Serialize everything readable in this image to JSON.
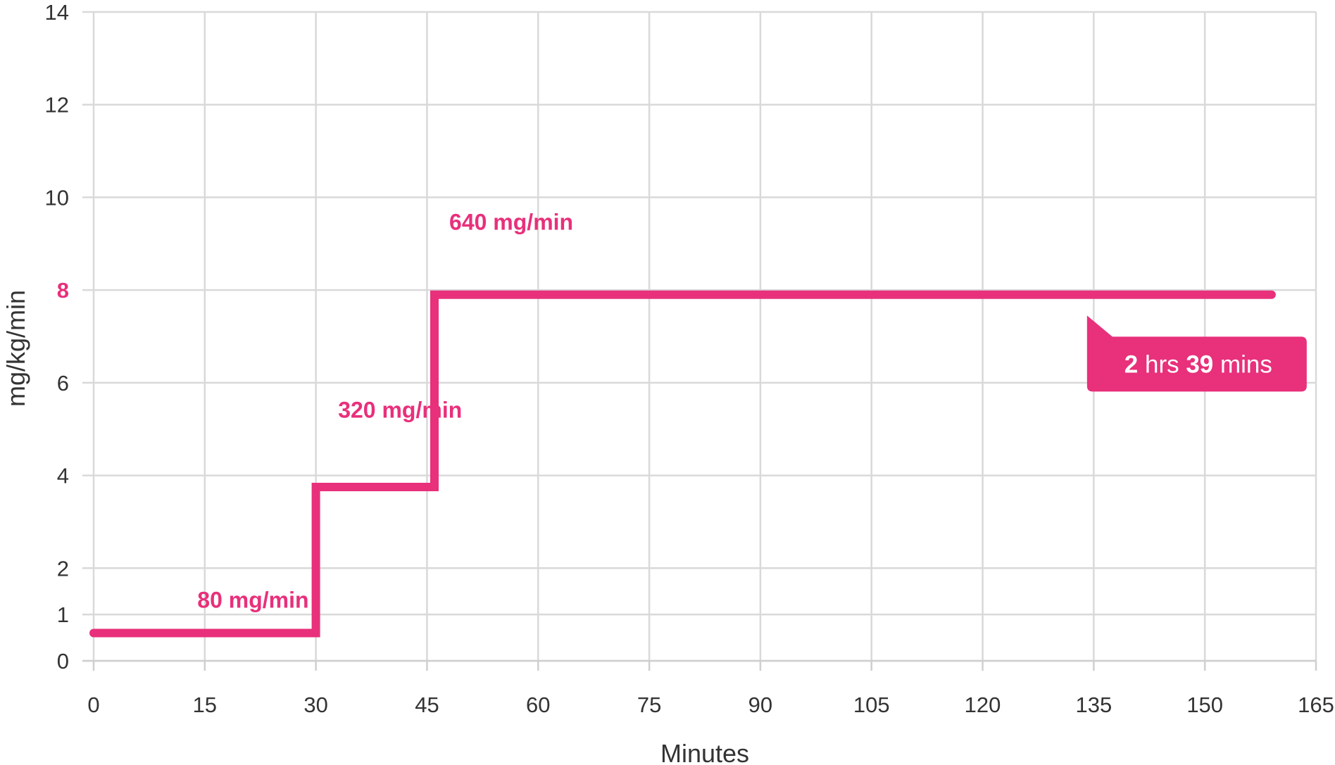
{
  "chart_data": {
    "type": "line",
    "step": true,
    "xlabel": "Minutes",
    "ylabel": "mg/kg/min",
    "xlim": [
      0,
      165
    ],
    "ylim": [
      0,
      14
    ],
    "x_ticks": [
      0,
      15,
      30,
      45,
      60,
      75,
      90,
      105,
      120,
      135,
      150,
      165
    ],
    "y_ticks": [
      0,
      1,
      2,
      4,
      6,
      8,
      10,
      12,
      14
    ],
    "highlight_y_tick": 8,
    "grid": true,
    "line_color": "#e8307b",
    "series": [
      {
        "points": [
          {
            "x": 0,
            "y": 0.6
          },
          {
            "x": 30,
            "y": 0.6
          },
          {
            "x": 30,
            "y": 3.75
          },
          {
            "x": 46,
            "y": 3.75
          },
          {
            "x": 46,
            "y": 7.9
          },
          {
            "x": 159,
            "y": 7.9
          }
        ]
      }
    ],
    "annotations": [
      {
        "text": "80 mg/min",
        "x": 14,
        "y": 1.15
      },
      {
        "text": "320 mg/min",
        "x": 33,
        "y": 5.25
      },
      {
        "text": "640 mg/min",
        "x": 48,
        "y": 9.3
      }
    ],
    "callout": {
      "x": 134,
      "y": 7.45,
      "parts": [
        {
          "text": "2",
          "bold": true
        },
        {
          "text": " hrs ",
          "bold": false
        },
        {
          "text": "39",
          "bold": true
        },
        {
          "text": " mins",
          "bold": false
        }
      ]
    }
  }
}
